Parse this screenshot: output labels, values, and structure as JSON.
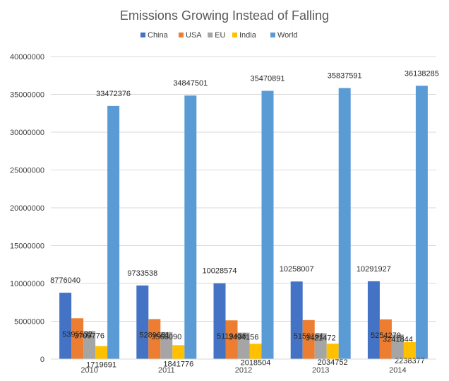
{
  "chart_data": {
    "type": "bar",
    "title": "Emissions Growing Instead of Falling",
    "categories": [
      "2010",
      "2011",
      "2012",
      "2013",
      "2014"
    ],
    "series": [
      {
        "name": "China",
        "color": "#4472C4",
        "values": [
          8776040,
          9733538,
          10028574,
          10258007,
          10291927
        ]
      },
      {
        "name": "USA",
        "color": "#ED7D31",
        "values": [
          5395532,
          5289681,
          5119436,
          5159161,
          5254279
        ]
      },
      {
        "name": "EU",
        "color": "#A5A5A5",
        "values": [
          3709776,
          3568090,
          3494156,
          3421472,
          3241844
        ]
      },
      {
        "name": "India",
        "color": "#FFC000",
        "values": [
          1719691,
          1841776,
          2018504,
          2034752,
          2238377
        ]
      },
      {
        "name": "World",
        "color": "#5B9BD5",
        "values": [
          33472376,
          34847501,
          35470891,
          35837591,
          36138285
        ]
      }
    ],
    "ylim": [
      0,
      40000000
    ],
    "yticks": [
      "0",
      "5000000",
      "10000000",
      "15000000",
      "20000000",
      "25000000",
      "30000000",
      "35000000",
      "40000000"
    ],
    "grid": true,
    "legend_position": "top",
    "data_labels": true
  }
}
